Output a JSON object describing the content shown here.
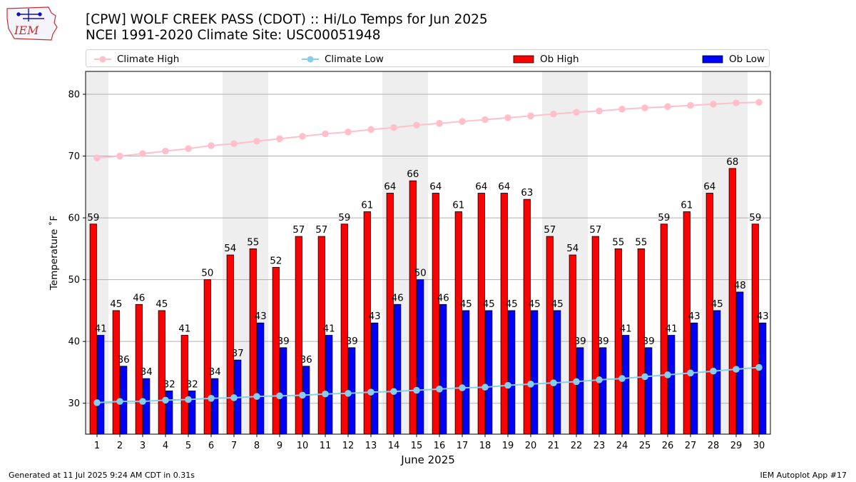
{
  "header": {
    "title_line1": "[CPW] WOLF CREEK PASS (CDOT) :: Hi/Lo Temps for Jun 2025",
    "title_line2": "NCEI 1991-2020 Climate Site: USC00051948"
  },
  "logo": {
    "text": "IEM"
  },
  "footer": {
    "generated": "Generated at 11 Jul 2025 9:24 AM CDT in 0.31s",
    "app": "IEM Autoplot App #17"
  },
  "colors": {
    "ob_high": "#ff0000",
    "ob_low": "#0000ff",
    "climate_high": "#ffc0cb",
    "climate_low": "#87ceeb",
    "weekend_band": "#eeeeee",
    "grid": "#b0b0b0"
  },
  "chart_data": {
    "type": "bar",
    "title": "[CPW] WOLF CREEK PASS (CDOT) :: Hi/Lo Temps for Jun 2025",
    "subtitle": "NCEI 1991-2020 Climate Site: USC00051948",
    "xlabel": "June 2025",
    "ylabel": "Temperature ˚F",
    "ylim": [
      25,
      83.7
    ],
    "yticks": [
      30,
      40,
      50,
      60,
      70,
      80
    ],
    "grid": "horizontal",
    "legend_placement": "top",
    "categories": [
      "1",
      "2",
      "3",
      "4",
      "5",
      "6",
      "7",
      "8",
      "9",
      "10",
      "11",
      "12",
      "13",
      "14",
      "15",
      "16",
      "17",
      "18",
      "19",
      "20",
      "21",
      "22",
      "23",
      "24",
      "25",
      "26",
      "27",
      "28",
      "29",
      "30"
    ],
    "shaded_days": [
      1,
      7,
      8,
      14,
      15,
      21,
      22,
      28,
      29
    ],
    "series": [
      {
        "name": "Ob High",
        "kind": "bar",
        "color": "#ff0000",
        "values": [
          59,
          45,
          46,
          45,
          41,
          50,
          54,
          55,
          52,
          57,
          57,
          59,
          61,
          64,
          66,
          64,
          61,
          64,
          64,
          63,
          57,
          54,
          57,
          55,
          55,
          59,
          61,
          64,
          68,
          59
        ]
      },
      {
        "name": "Ob Low",
        "kind": "bar",
        "color": "#0000ff",
        "values": [
          41,
          36,
          34,
          32,
          32,
          34,
          37,
          43,
          39,
          36,
          41,
          39,
          43,
          46,
          50,
          46,
          45,
          45,
          45,
          45,
          45,
          39,
          39,
          41,
          39,
          41,
          43,
          45,
          48,
          43
        ]
      },
      {
        "name": "Climate High",
        "kind": "line",
        "color": "#ffc0cb",
        "values": [
          69.7,
          70.0,
          70.4,
          70.8,
          71.2,
          71.7,
          72.0,
          72.4,
          72.8,
          73.2,
          73.6,
          73.9,
          74.3,
          74.6,
          75.0,
          75.3,
          75.6,
          75.9,
          76.2,
          76.5,
          76.8,
          77.1,
          77.3,
          77.6,
          77.8,
          78.0,
          78.2,
          78.4,
          78.6,
          78.7
        ]
      },
      {
        "name": "Climate Low",
        "kind": "line",
        "color": "#87ceeb",
        "values": [
          30.1,
          30.3,
          30.3,
          30.5,
          30.6,
          30.8,
          30.9,
          31.1,
          31.2,
          31.3,
          31.5,
          31.6,
          31.8,
          31.9,
          32.1,
          32.3,
          32.5,
          32.6,
          32.9,
          33.1,
          33.3,
          33.5,
          33.8,
          34.0,
          34.3,
          34.6,
          34.9,
          35.2,
          35.5,
          35.8
        ]
      }
    ]
  }
}
